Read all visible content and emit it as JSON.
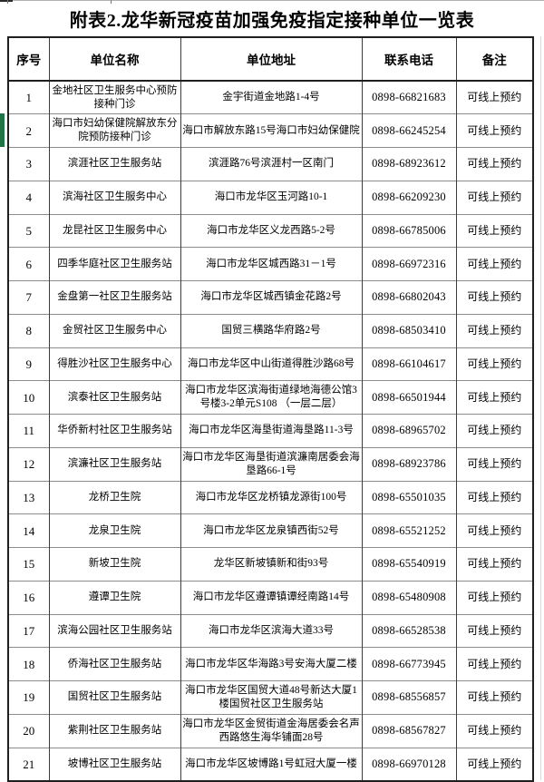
{
  "page": {
    "title": "附表2.龙华新冠疫苗加强免疫指定接种单位一览表"
  },
  "table": {
    "headers": [
      "序号",
      "单位名称",
      "单位地址",
      "联系电话",
      "备注"
    ],
    "rows": [
      {
        "seq": "1",
        "name": "金地社区卫生服务中心预防接种门诊",
        "address": "金宇街道金地路1-4号",
        "phone": "0898-66821683",
        "note": "可线上预约"
      },
      {
        "seq": "2",
        "name": "海口市妇幼保健院解放东分院预防接种门诊",
        "address": "海口市解放东路15号海口市妇幼保健院",
        "phone": "0898-66245254",
        "note": "可线上预约"
      },
      {
        "seq": "3",
        "name": "滨涯社区卫生服务站",
        "address": "滨涯路76号滨涯村一区南门",
        "phone": "0898-68923612",
        "note": "可线上预约"
      },
      {
        "seq": "4",
        "name": "滨海社区卫生服务中心",
        "address": "海口市龙华区玉河路10-1",
        "phone": "0898-66209230",
        "note": "可线上预约"
      },
      {
        "seq": "5",
        "name": "龙昆社区卫生服务中心",
        "address": "海口市龙华区义龙西路5-2号",
        "phone": "0898-66785006",
        "note": "可线上预约"
      },
      {
        "seq": "6",
        "name": "四季华庭社区卫生服务站",
        "address": "海口市龙华区城西路31－1号",
        "phone": "0898-66972316",
        "note": "可线上预约"
      },
      {
        "seq": "7",
        "name": "金盘第一社区卫生服务站",
        "address": "海口市龙华区城西镇金花路2号",
        "phone": "0898-66802043",
        "note": "可线上预约"
      },
      {
        "seq": "8",
        "name": "金贸社区卫生服务中心",
        "address": "国贸三横路华府路2号",
        "phone": "0898-68503410",
        "note": "可线上预约"
      },
      {
        "seq": "9",
        "name": "得胜沙社区卫生服务中心",
        "address": "海口市龙华区中山街道得胜沙路68号",
        "phone": "0898-66104617",
        "note": "可线上预约"
      },
      {
        "seq": "10",
        "name": "滨泰社区卫生服务站",
        "address": "海口市龙华区滨海街道绿地海德公馆3号楼3-2单元S108 （一层二层）",
        "phone": "0898-66501944",
        "note": "可线上预约"
      },
      {
        "seq": "11",
        "name": "华侨新村社区卫生服务站",
        "address": "海口市龙华区海垦街道海垦路11-3号",
        "phone": "0898-68965702",
        "note": "可线上预约"
      },
      {
        "seq": "12",
        "name": "滨濂社区卫生服务站",
        "address": "海口市龙华区海垦街道滨濂南居委会海垦路66-1号",
        "phone": "0898-68923786",
        "note": "可线上预约"
      },
      {
        "seq": "13",
        "name": "龙桥卫生院",
        "address": "海口市龙华区龙桥镇龙源街100号",
        "phone": "0898-65501035",
        "note": "可线上预约"
      },
      {
        "seq": "14",
        "name": "龙泉卫生院",
        "address": "海口市龙华区龙泉镇西街52号",
        "phone": "0898-65521252",
        "note": "可线上预约"
      },
      {
        "seq": "15",
        "name": "新坡卫生院",
        "address": "龙华区新坡镇新和街93号",
        "phone": "0898-65540919",
        "note": "可线上预约"
      },
      {
        "seq": "16",
        "name": "遵谭卫生院",
        "address": "海口市龙华区遵谭镇谭经南路14号",
        "phone": "0898-65480908",
        "note": "可线上预约"
      },
      {
        "seq": "17",
        "name": "滨海公园社区卫生服务站",
        "address": "海口市龙华区滨海大道33号",
        "phone": "0898-66528538",
        "note": "可线上预约"
      },
      {
        "seq": "18",
        "name": "侨海社区卫生服务站",
        "address": "海口市龙华区华海路3号安海大厦二楼",
        "phone": "0898-66773945",
        "note": "可线上预约"
      },
      {
        "seq": "19",
        "name": "国贸社区卫生服务站",
        "address": "海口市龙华区国贸大道48号新达大厦1楼国贸社区卫生服务站",
        "phone": "0898-68556857",
        "note": "可线上预约"
      },
      {
        "seq": "20",
        "name": "紫荆社区卫生服务站",
        "address": "海口市龙华区金贸街道金海居委会名声西路悠生海华铺面28号",
        "phone": "0898-68567827",
        "note": "可线上预约"
      },
      {
        "seq": "21",
        "name": "坡博社区卫生服务站",
        "address": "海口市龙华区坡博路1号虹冠大厦一楼",
        "phone": "0898-66970128",
        "note": "可线上预约"
      }
    ]
  },
  "marker": {
    "marked_row_seq": "2",
    "color": "#217346"
  },
  "colors": {
    "background": "#ffffff",
    "text": "#000000",
    "border_dark": "#1f1f1f",
    "border_light": "#8c8c8c",
    "gridline_faint": "#d9d9d9"
  }
}
